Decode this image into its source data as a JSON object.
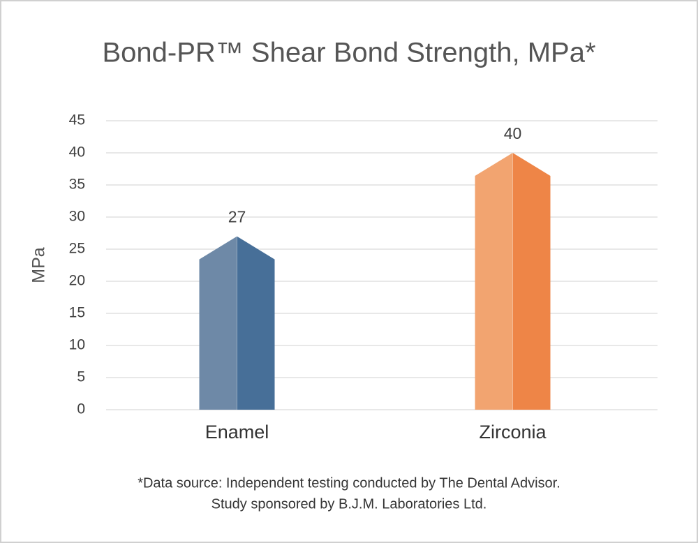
{
  "chart_data": {
    "type": "bar",
    "title": "Bond-PR™ Shear Bond Strength, MPa*",
    "y_label": "MPa",
    "categories": [
      "Enamel",
      "Zirconia"
    ],
    "values": [
      27,
      40
    ],
    "colors": [
      "#6e89a7",
      "#f2a470"
    ],
    "dark_colors": [
      "#476f98",
      "#ee8547"
    ],
    "ylim": [
      0,
      45
    ],
    "yticks": [
      0,
      5,
      10,
      15,
      20,
      25,
      30,
      35,
      40,
      45
    ],
    "grid": true,
    "footnote": [
      "*Data source: Independent testing conducted by The Dental Advisor.",
      "Study sponsored by B.J.M. Laboratories Ltd."
    ]
  }
}
